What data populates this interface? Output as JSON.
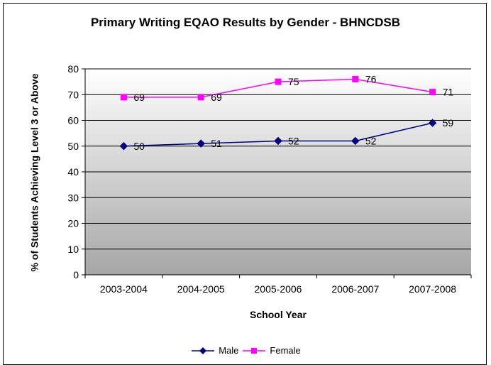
{
  "chart_data": {
    "type": "line",
    "title": "Primary Writing EQAO Results by Gender - BHNCDSB",
    "xlabel": "School Year",
    "ylabel": "% of Students Achieving Level 3 or Above",
    "categories": [
      "2003-2004",
      "2004-2005",
      "2005-2006",
      "2006-2007",
      "2007-2008"
    ],
    "series": [
      {
        "name": "Male",
        "values": [
          50,
          51,
          52,
          52,
          59
        ],
        "color": "#000080",
        "marker": "diamond"
      },
      {
        "name": "Female",
        "values": [
          69,
          69,
          75,
          76,
          71
        ],
        "color": "#ff00ff",
        "marker": "square"
      }
    ],
    "ylim": [
      0,
      80
    ],
    "yticks": [
      0,
      10,
      20,
      30,
      40,
      50,
      60,
      70,
      80
    ],
    "grid": true,
    "legend_position": "bottom",
    "plot_background": "gradient white to gray"
  }
}
